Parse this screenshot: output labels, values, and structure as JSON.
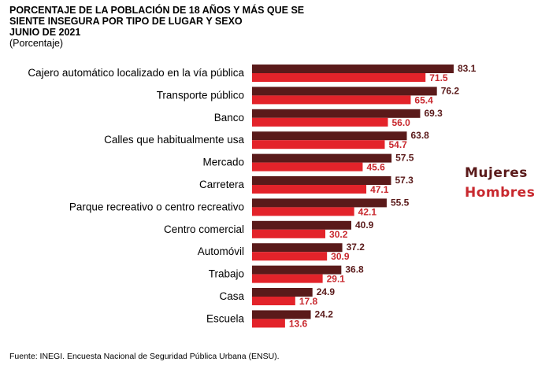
{
  "title_lines": [
    "PORCENTAJE DE LA POBLACIÓN DE 18 AÑOS Y MÁS QUE SE",
    "SIENTE INSEGURA POR TIPO DE LUGAR Y SEXO",
    "JUNIO DE 2021"
  ],
  "subtitle": "(Porcentaje)",
  "source": "Fuente: INEGI. Encuesta Nacional de Seguridad Pública Urbana (ENSU).",
  "colors": {
    "mujeres": "#5a1a1a",
    "hombres": "#e3232a",
    "mujeres_text": "#5a1a1a",
    "hombres_text": "#c8282e"
  },
  "chart_data": {
    "type": "bar",
    "orientation": "horizontal",
    "title": "PORCENTAJE DE LA POBLACIÓN DE 18 AÑOS Y MÁS QUE SE SIENTE INSEGURA POR TIPO DE LUGAR Y SEXO JUNIO DE 2021",
    "subtitle": "(Porcentaje)",
    "categories": [
      "Cajero automático localizado en la vía pública",
      "Transporte público",
      "Banco",
      "Calles que habitualmente usa",
      "Mercado",
      "Carretera",
      "Parque recreativo o centro recreativo",
      "Centro comercial",
      "Automóvil",
      "Trabajo",
      "Casa",
      "Escuela"
    ],
    "series": [
      {
        "name": "Mujeres",
        "values": [
          83.1,
          76.2,
          69.3,
          63.8,
          57.5,
          57.3,
          55.5,
          40.9,
          37.2,
          36.8,
          24.9,
          24.2
        ]
      },
      {
        "name": "Hombres",
        "values": [
          71.5,
          65.4,
          56.0,
          54.7,
          45.6,
          47.1,
          42.1,
          30.2,
          30.9,
          29.1,
          17.8,
          13.6
        ]
      }
    ],
    "legend": "right",
    "grid": false,
    "xlim": [
      0,
      85
    ]
  }
}
